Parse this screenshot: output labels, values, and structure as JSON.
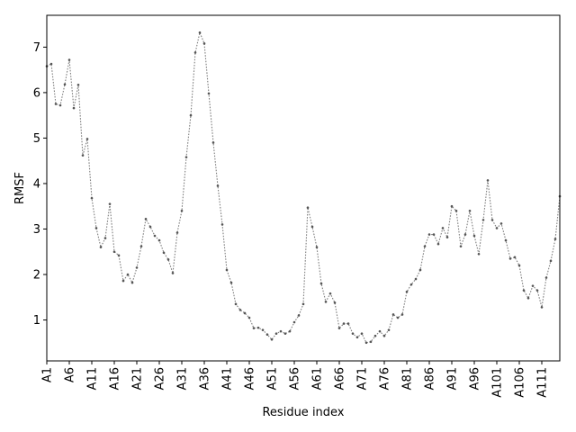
{
  "chart_data": {
    "type": "line",
    "title": "",
    "xlabel": "Residue index",
    "ylabel": "RMSF",
    "xlim": [
      1,
      115
    ],
    "ylim": [
      0.1,
      7.7
    ],
    "y_ticks": [
      1,
      2,
      3,
      4,
      5,
      6,
      7
    ],
    "x_tick_labels": [
      "A1",
      "A6",
      "A11",
      "A16",
      "A21",
      "A26",
      "A31",
      "A36",
      "A41",
      "A46",
      "A51",
      "A56",
      "A61",
      "A66",
      "A71",
      "A76",
      "A81",
      "A86",
      "A91",
      "A96",
      "A101",
      "A106",
      "A111"
    ],
    "grid": false,
    "line_style": "dotted",
    "line_color": "#7f7f7f",
    "marker_color": "#555555",
    "x": [
      1,
      2,
      3,
      4,
      5,
      6,
      7,
      8,
      9,
      10,
      11,
      12,
      13,
      14,
      15,
      16,
      17,
      18,
      19,
      20,
      21,
      22,
      23,
      24,
      25,
      26,
      27,
      28,
      29,
      30,
      31,
      32,
      33,
      34,
      35,
      36,
      37,
      38,
      39,
      40,
      41,
      42,
      43,
      44,
      45,
      46,
      47,
      48,
      49,
      50,
      51,
      52,
      53,
      54,
      55,
      56,
      57,
      58,
      59,
      60,
      61,
      62,
      63,
      64,
      65,
      66,
      67,
      68,
      69,
      70,
      71,
      72,
      73,
      74,
      75,
      76,
      77,
      78,
      79,
      80,
      81,
      82,
      83,
      84,
      85,
      86,
      87,
      88,
      89,
      90,
      91,
      92,
      93,
      94,
      95,
      96,
      97,
      98,
      99,
      100,
      101,
      102,
      103,
      104,
      105,
      106,
      107,
      108,
      109,
      110,
      111,
      112,
      113,
      114,
      115
    ],
    "values": [
      6.58,
      6.63,
      5.75,
      5.72,
      6.18,
      6.72,
      5.66,
      6.17,
      4.62,
      4.98,
      3.68,
      3.02,
      2.6,
      2.8,
      3.55,
      2.5,
      2.42,
      1.86,
      2.0,
      1.82,
      2.15,
      2.62,
      3.22,
      3.05,
      2.85,
      2.75,
      2.48,
      2.33,
      2.03,
      2.92,
      3.4,
      4.58,
      5.5,
      6.88,
      7.32,
      7.08,
      5.98,
      4.9,
      3.95,
      3.1,
      2.1,
      1.82,
      1.35,
      1.22,
      1.15,
      1.05,
      0.82,
      0.83,
      0.78,
      0.68,
      0.57,
      0.7,
      0.75,
      0.7,
      0.75,
      0.95,
      1.1,
      1.35,
      3.47,
      3.05,
      2.6,
      1.8,
      1.4,
      1.58,
      1.38,
      0.82,
      0.92,
      0.92,
      0.7,
      0.62,
      0.7,
      0.5,
      0.52,
      0.65,
      0.75,
      0.65,
      0.78,
      1.12,
      1.05,
      1.12,
      1.62,
      1.78,
      1.9,
      2.1,
      2.62,
      2.88,
      2.88,
      2.67,
      3.02,
      2.82,
      3.5,
      3.4,
      2.62,
      2.88,
      3.4,
      2.85,
      2.45,
      3.2,
      4.07,
      3.2,
      3.02,
      3.12,
      2.75,
      2.35,
      2.38,
      2.2,
      1.65,
      1.48,
      1.75,
      1.65,
      1.28,
      1.93,
      2.3,
      2.78,
      3.72
    ]
  }
}
